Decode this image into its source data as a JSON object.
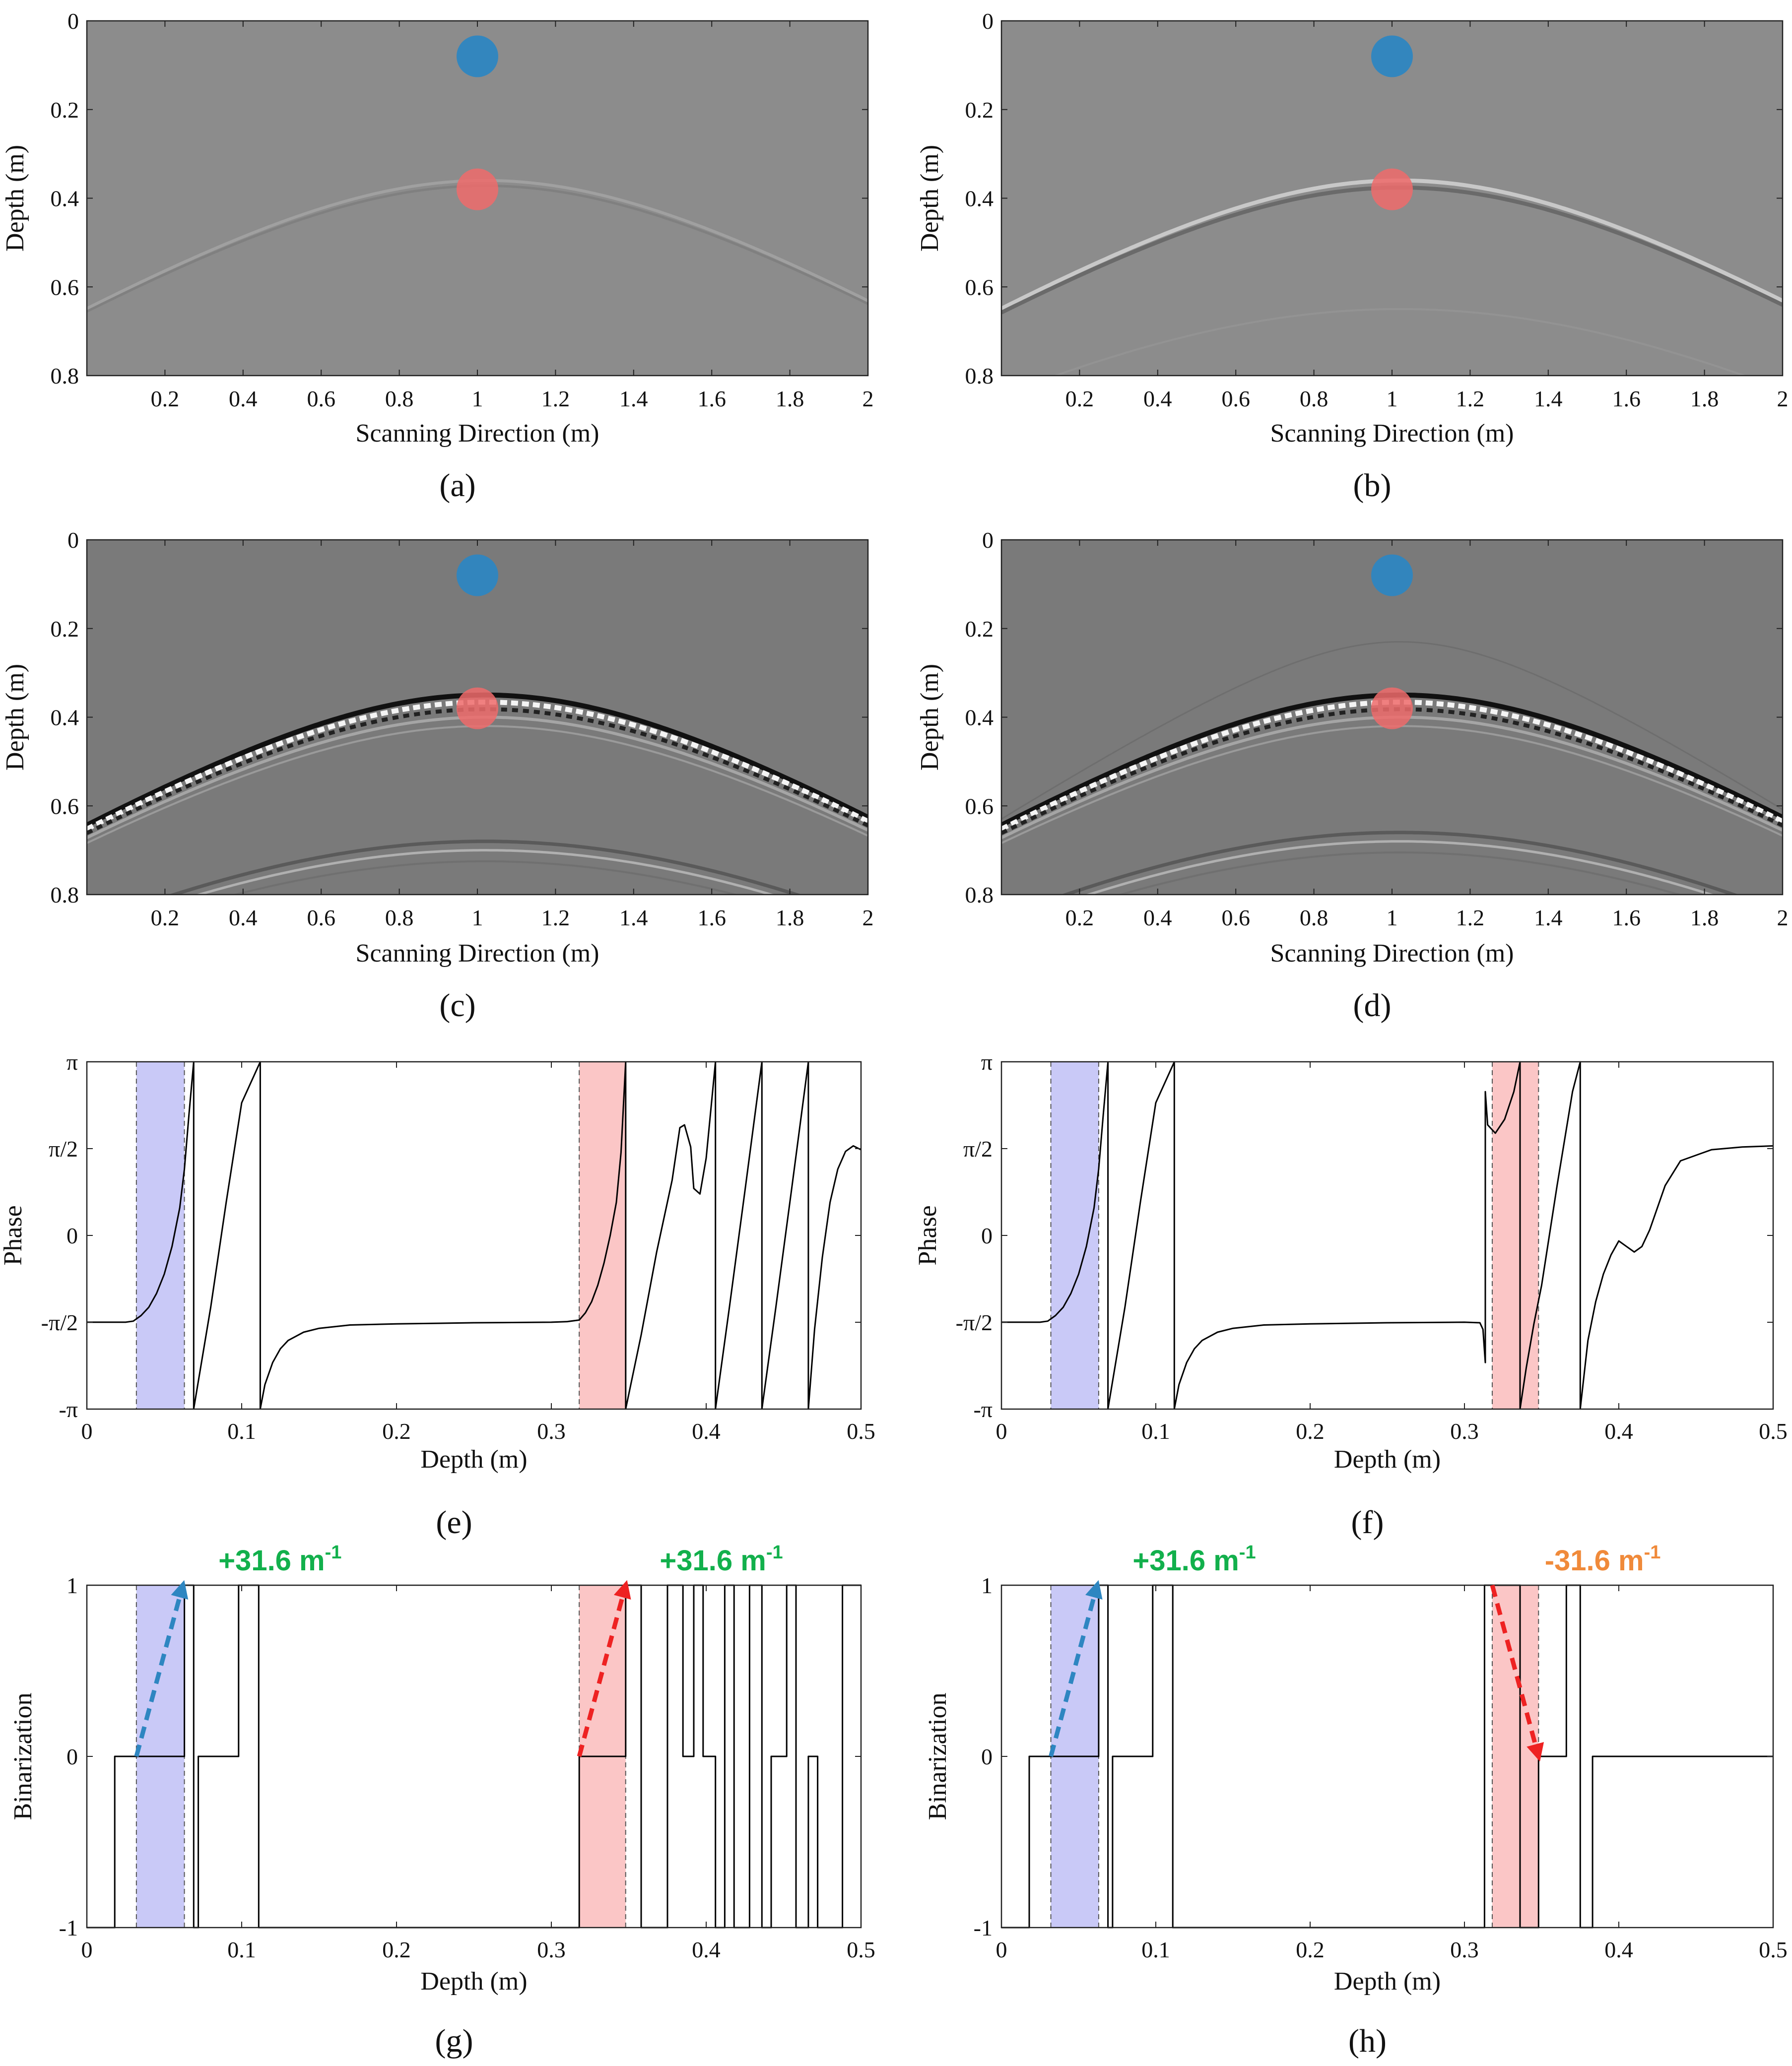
{
  "colors": {
    "gpr_background": "#8c8c8c",
    "gpr_background_dark": "#7a7a7a",
    "blue_marker": "#2e86c1",
    "red_marker": "#ef6b6b",
    "blue_band": "#c9c9f7",
    "red_band": "#fbc6c6",
    "blue_arrow": "#2e86c1",
    "red_arrow": "#ee2222",
    "positive_text": "#12b04c",
    "negative_text": "#f08a3a",
    "trace": "#000000"
  },
  "chart_data": [
    {
      "id": "a",
      "caption": "(a)",
      "type": "heatmap",
      "xlabel": "Scanning Direction (m)",
      "ylabel": "Depth (m)",
      "xlim": [
        0,
        2
      ],
      "ylim": [
        0,
        0.8
      ],
      "xticks": [
        "0.2",
        "0.4",
        "0.6",
        "0.8",
        "1",
        "1.2",
        "1.4",
        "1.6",
        "1.8",
        "2"
      ],
      "yticks": [
        "0",
        "0.2",
        "0.4",
        "0.6",
        "0.8"
      ],
      "markers": [
        {
          "name": "surface",
          "x": 1.0,
          "depth": 0.08,
          "color": "blue"
        },
        {
          "name": "target",
          "x": 1.0,
          "depth": 0.38,
          "color": "red"
        }
      ],
      "hyperbola": {
        "apex_x": 1.02,
        "apex_depth": 0.36,
        "intensity": "faint"
      },
      "surface_band": true,
      "background": "light"
    },
    {
      "id": "b",
      "caption": "(b)",
      "type": "heatmap",
      "xlabel": "Scanning Direction (m)",
      "ylabel": "Depth (m)",
      "xlim": [
        0,
        2
      ],
      "ylim": [
        0,
        0.8
      ],
      "xticks": [
        "0.2",
        "0.4",
        "0.6",
        "0.8",
        "1",
        "1.2",
        "1.4",
        "1.6",
        "1.8",
        "2"
      ],
      "yticks": [
        "0",
        "0.2",
        "0.4",
        "0.6",
        "0.8"
      ],
      "markers": [
        {
          "name": "surface",
          "x": 1.0,
          "depth": 0.08,
          "color": "blue"
        },
        {
          "name": "target",
          "x": 1.0,
          "depth": 0.38,
          "color": "red"
        }
      ],
      "hyperbola": {
        "apex_x": 1.02,
        "apex_depth": 0.36,
        "intensity": "medium"
      },
      "surface_band": true,
      "background": "light"
    },
    {
      "id": "c",
      "caption": "(c)",
      "type": "heatmap",
      "xlabel": "Scanning Direction (m)",
      "ylabel": "Depth (m)",
      "xlim": [
        0,
        2
      ],
      "ylim": [
        0,
        0.8
      ],
      "xticks": [
        "0.2",
        "0.4",
        "0.6",
        "0.8",
        "1",
        "1.2",
        "1.4",
        "1.6",
        "1.8",
        "2"
      ],
      "yticks": [
        "0",
        "0.2",
        "0.4",
        "0.6",
        "0.8"
      ],
      "markers": [
        {
          "name": "surface",
          "x": 1.0,
          "depth": 0.08,
          "color": "blue"
        },
        {
          "name": "target",
          "x": 1.0,
          "depth": 0.38,
          "color": "red"
        }
      ],
      "hyperbola": {
        "apex_x": 1.02,
        "apex_depth": 0.36,
        "intensity": "strong"
      },
      "secondary_hyperbola": {
        "apex_depth": 0.68
      },
      "surface_band": false,
      "background": "dark"
    },
    {
      "id": "d",
      "caption": "(d)",
      "type": "heatmap",
      "xlabel": "Scanning Direction (m)",
      "ylabel": "Depth (m)",
      "xlim": [
        0,
        2
      ],
      "ylim": [
        0,
        0.8
      ],
      "xticks": [
        "0.2",
        "0.4",
        "0.6",
        "0.8",
        "1",
        "1.2",
        "1.4",
        "1.6",
        "1.8",
        "2"
      ],
      "yticks": [
        "0",
        "0.2",
        "0.4",
        "0.6",
        "0.8"
      ],
      "markers": [
        {
          "name": "surface",
          "x": 1.0,
          "depth": 0.08,
          "color": "blue"
        },
        {
          "name": "target",
          "x": 1.0,
          "depth": 0.38,
          "color": "red"
        }
      ],
      "hyperbola": {
        "apex_x": 1.02,
        "apex_depth": 0.36,
        "intensity": "strong"
      },
      "secondary_hyperbola": {
        "apex_depth": 0.66
      },
      "surface_band": false,
      "background": "dark"
    },
    {
      "id": "e",
      "caption": "(e)",
      "type": "line",
      "xlabel": "Depth (m)",
      "ylabel": "Phase",
      "xlim": [
        0,
        0.5
      ],
      "ylim": [
        -3.1416,
        3.1416
      ],
      "xticks": [
        "0",
        "0.1",
        "0.2",
        "0.3",
        "0.4",
        "0.5"
      ],
      "yticks": [
        "-π",
        "-π/2",
        "0",
        "π/2",
        "π"
      ],
      "bands": [
        {
          "color": "blue",
          "from": 0.032,
          "to": 0.063
        },
        {
          "color": "red",
          "from": 0.318,
          "to": 0.348
        }
      ],
      "series": [
        {
          "name": "phase",
          "x": [
            0,
            0.025,
            0.03,
            0.035,
            0.04,
            0.045,
            0.05,
            0.055,
            0.06,
            0.063,
            0.066,
            0.069,
            0.069,
            0.08,
            0.09,
            0.1,
            0.112,
            0.112,
            0.115,
            0.12,
            0.125,
            0.13,
            0.14,
            0.15,
            0.17,
            0.2,
            0.25,
            0.3,
            0.31,
            0.318,
            0.322,
            0.326,
            0.33,
            0.334,
            0.338,
            0.342,
            0.345,
            0.348,
            0.348,
            0.358,
            0.368,
            0.378,
            0.383,
            0.386,
            0.39,
            0.392,
            0.396,
            0.4,
            0.406,
            0.406,
            0.415,
            0.425,
            0.436,
            0.436,
            0.445,
            0.455,
            0.466,
            0.466,
            0.47,
            0.475,
            0.48,
            0.485,
            0.49,
            0.495,
            0.5
          ],
          "y": [
            -1.57,
            -1.57,
            -1.55,
            -1.45,
            -1.3,
            -1.05,
            -0.7,
            -0.2,
            0.5,
            1.2,
            2.2,
            3.14,
            -3.14,
            -1.3,
            0.6,
            2.4,
            3.14,
            -3.14,
            -2.7,
            -2.3,
            -2.05,
            -1.9,
            -1.75,
            -1.68,
            -1.62,
            -1.6,
            -1.58,
            -1.57,
            -1.56,
            -1.53,
            -1.4,
            -1.2,
            -0.9,
            -0.5,
            0.0,
            0.6,
            1.5,
            3.14,
            -3.14,
            -1.8,
            -0.3,
            1.0,
            1.95,
            2.0,
            1.6,
            0.85,
            0.75,
            1.4,
            3.14,
            -3.14,
            -1.3,
            0.8,
            3.14,
            -3.14,
            -1.3,
            0.8,
            3.14,
            -3.14,
            -1.7,
            -0.4,
            0.6,
            1.2,
            1.52,
            1.62,
            1.55
          ]
        }
      ]
    },
    {
      "id": "f",
      "caption": "(f)",
      "type": "line",
      "xlabel": "Depth (m)",
      "ylabel": "Phase",
      "xlim": [
        0,
        0.5
      ],
      "ylim": [
        -3.1416,
        3.1416
      ],
      "xticks": [
        "0",
        "0.1",
        "0.2",
        "0.3",
        "0.4",
        "0.5"
      ],
      "yticks": [
        "-π",
        "-π/2",
        "0",
        "π/2",
        "π"
      ],
      "bands": [
        {
          "color": "blue",
          "from": 0.032,
          "to": 0.063
        },
        {
          "color": "red",
          "from": 0.318,
          "to": 0.348
        }
      ],
      "series": [
        {
          "name": "phase",
          "x": [
            0,
            0.025,
            0.03,
            0.035,
            0.04,
            0.045,
            0.05,
            0.055,
            0.06,
            0.063,
            0.066,
            0.069,
            0.069,
            0.08,
            0.09,
            0.1,
            0.112,
            0.112,
            0.115,
            0.12,
            0.125,
            0.13,
            0.14,
            0.15,
            0.17,
            0.2,
            0.25,
            0.3,
            0.31,
            0.312,
            0.313,
            0.3135,
            0.3135,
            0.315,
            0.32,
            0.326,
            0.332,
            0.336,
            0.336,
            0.34,
            0.345,
            0.35,
            0.36,
            0.37,
            0.375,
            0.375,
            0.38,
            0.385,
            0.39,
            0.395,
            0.4,
            0.405,
            0.41,
            0.415,
            0.42,
            0.43,
            0.44,
            0.46,
            0.48,
            0.5
          ],
          "y": [
            -1.57,
            -1.57,
            -1.55,
            -1.45,
            -1.3,
            -1.05,
            -0.7,
            -0.2,
            0.5,
            1.2,
            2.2,
            3.14,
            -3.14,
            -1.3,
            0.6,
            2.4,
            3.14,
            -3.14,
            -2.7,
            -2.3,
            -2.05,
            -1.9,
            -1.75,
            -1.68,
            -1.62,
            -1.6,
            -1.58,
            -1.57,
            -1.58,
            -1.7,
            -2.1,
            -2.3,
            2.6,
            2.0,
            1.85,
            2.1,
            2.6,
            3.14,
            -3.14,
            -2.4,
            -1.6,
            -0.9,
            0.9,
            2.6,
            3.14,
            -3.14,
            -1.9,
            -1.2,
            -0.7,
            -0.35,
            -0.1,
            -0.2,
            -0.3,
            -0.2,
            0.1,
            0.9,
            1.35,
            1.55,
            1.6,
            1.62
          ]
        }
      ]
    },
    {
      "id": "g",
      "caption": "(g)",
      "type": "line",
      "xlabel": "Depth (m)",
      "ylabel": "Binarization",
      "xlim": [
        0,
        0.5
      ],
      "ylim": [
        -1,
        1
      ],
      "xticks": [
        "0",
        "0.1",
        "0.2",
        "0.3",
        "0.4",
        "0.5"
      ],
      "yticks": [
        "-1",
        "0",
        "1"
      ],
      "bands": [
        {
          "color": "blue",
          "from": 0.032,
          "to": 0.063
        },
        {
          "color": "red",
          "from": 0.318,
          "to": 0.348
        }
      ],
      "annotations": [
        {
          "text": "+31.6 m",
          "sup": "-1",
          "sign": "positive",
          "arrow_from": [
            0.032,
            0
          ],
          "arrow_to": [
            0.062,
            1
          ],
          "arrow_color": "blue",
          "label_at": [
            0.085,
            1.0
          ]
        },
        {
          "text": "+31.6 m",
          "sup": "-1",
          "sign": "positive",
          "arrow_from": [
            0.318,
            0
          ],
          "arrow_to": [
            0.348,
            1
          ],
          "arrow_color": "red",
          "label_at": [
            0.37,
            1.0
          ]
        }
      ],
      "series": [
        {
          "name": "binarization",
          "x": [
            0,
            0.018,
            0.018,
            0.025,
            0.025,
            0.063,
            0.063,
            0.069,
            0.069,
            0.072,
            0.072,
            0.079,
            0.079,
            0.098,
            0.098,
            0.1,
            0.1,
            0.111,
            0.111,
            0.318,
            0.318,
            0.348,
            0.348,
            0.358,
            0.358,
            0.375,
            0.375,
            0.385,
            0.385,
            0.392,
            0.392,
            0.398,
            0.398,
            0.406,
            0.406,
            0.412,
            0.412,
            0.418,
            0.418,
            0.428,
            0.428,
            0.436,
            0.436,
            0.442,
            0.442,
            0.452,
            0.452,
            0.458,
            0.458,
            0.466,
            0.466,
            0.472,
            0.472,
            0.488,
            0.488,
            0.5
          ],
          "y": [
            -1,
            -1,
            0,
            0,
            0,
            0,
            1,
            1,
            -1,
            -1,
            0,
            0,
            0,
            0,
            1,
            1,
            1,
            1,
            -1,
            -1,
            0,
            0,
            1,
            1,
            -1,
            -1,
            1,
            1,
            0,
            0,
            1,
            1,
            0,
            0,
            -1,
            -1,
            1,
            1,
            -1,
            -1,
            1,
            1,
            -1,
            -1,
            0,
            0,
            1,
            1,
            -1,
            -1,
            0,
            0,
            -1,
            -1,
            1,
            1
          ]
        }
      ]
    },
    {
      "id": "h",
      "caption": "(h)",
      "type": "line",
      "xlabel": "Depth (m)",
      "ylabel": "Binarization",
      "xlim": [
        0,
        0.5
      ],
      "ylim": [
        -1,
        1
      ],
      "xticks": [
        "0",
        "0.1",
        "0.2",
        "0.3",
        "0.4",
        "0.5"
      ],
      "yticks": [
        "-1",
        "0",
        "1"
      ],
      "bands": [
        {
          "color": "blue",
          "from": 0.032,
          "to": 0.063
        },
        {
          "color": "red",
          "from": 0.318,
          "to": 0.348
        }
      ],
      "annotations": [
        {
          "text": "+31.6 m",
          "sup": "-1",
          "sign": "positive",
          "arrow_from": [
            0.032,
            0
          ],
          "arrow_to": [
            0.062,
            1
          ],
          "arrow_color": "blue",
          "label_at": [
            0.085,
            1.0
          ]
        },
        {
          "text": "-31.6 m",
          "sup": "-1",
          "sign": "negative",
          "arrow_from": [
            0.318,
            1
          ],
          "arrow_to": [
            0.348,
            0
          ],
          "arrow_color": "red",
          "label_at": [
            0.352,
            1.0
          ]
        }
      ],
      "series": [
        {
          "name": "binarization",
          "x": [
            0,
            0.018,
            0.018,
            0.025,
            0.025,
            0.063,
            0.063,
            0.069,
            0.069,
            0.072,
            0.072,
            0.079,
            0.079,
            0.098,
            0.098,
            0.1,
            0.1,
            0.111,
            0.111,
            0.313,
            0.313,
            0.336,
            0.336,
            0.348,
            0.348,
            0.366,
            0.366,
            0.375,
            0.375,
            0.383,
            0.383,
            0.5
          ],
          "y": [
            -1,
            -1,
            0,
            0,
            0,
            0,
            1,
            1,
            -1,
            -1,
            0,
            0,
            0,
            0,
            1,
            1,
            1,
            1,
            -1,
            -1,
            1,
            1,
            -1,
            -1,
            0,
            0,
            1,
            1,
            -1,
            -1,
            0,
            0
          ]
        }
      ]
    }
  ]
}
